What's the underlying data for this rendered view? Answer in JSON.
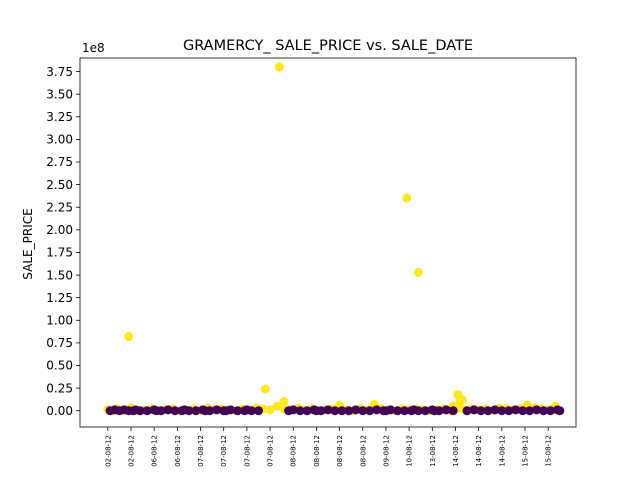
{
  "chart_data": {
    "type": "scatter",
    "title": "GRAMERCY_ SALE_PRICE vs. SALE_DATE",
    "xlabel": "",
    "ylabel": "SALE_PRICE",
    "y_offset_text": "1e8",
    "y_scale_factor": 100000000,
    "ylim": [
      -0.18,
      3.9
    ],
    "yticks": [
      0.0,
      0.25,
      0.5,
      0.75,
      1.0,
      1.25,
      1.5,
      1.75,
      2.0,
      2.25,
      2.5,
      2.75,
      3.0,
      3.25,
      3.5,
      3.75
    ],
    "ytick_labels": [
      "0.00",
      "0.25",
      "0.50",
      "0.75",
      "1.00",
      "1.25",
      "1.50",
      "1.75",
      "2.00",
      "2.25",
      "2.50",
      "2.75",
      "3.00",
      "3.25",
      "3.50",
      "3.75"
    ],
    "xtick_labels": [
      "02-08-12",
      "02-08-12",
      "06-08-12",
      "06-08-12",
      "07-08-12",
      "07-08-12",
      "07-08-12",
      "07-08-12",
      "08-08-12",
      "08-08-12",
      "08-08-12",
      "08-08-12",
      "09-08-12",
      "10-08-12",
      "13-08-12",
      "14-08-12",
      "14-08-12",
      "14-08-12",
      "15-08-12",
      "15-08-12"
    ],
    "xlim": [
      -1.2,
      20.2
    ],
    "grid": false,
    "legend": "none",
    "colors": {
      "yellow": "#fde725",
      "purple": "#440154",
      "axes": "#000000"
    },
    "series": [
      {
        "color": "#fde725",
        "x": [
          0.9,
          7.4,
          7.6,
          6.8,
          12.9,
          13.4,
          15.1,
          15.3,
          14.9,
          15.2
        ],
        "y": [
          0.82,
          3.8,
          0.1,
          0.24,
          2.35,
          1.53,
          0.18,
          0.12,
          0.05,
          0.1
        ]
      },
      {
        "color": "#fde725",
        "x": [
          0.0,
          0.2,
          0.4,
          0.6,
          0.8,
          1.0,
          1.3,
          1.6,
          1.9,
          2.2,
          2.5,
          2.8,
          3.1,
          3.4,
          3.7,
          4.0,
          4.3,
          4.6,
          4.9,
          5.2,
          5.5,
          5.8,
          6.1,
          6.4,
          6.7,
          7.0,
          7.3,
          7.6,
          7.9,
          8.2,
          8.5,
          8.8,
          9.1,
          9.4,
          9.7,
          10.0,
          10.3,
          10.6,
          10.9,
          11.2,
          11.5,
          11.8,
          12.1,
          12.4,
          12.7,
          13.0,
          13.3,
          13.6,
          13.9,
          14.2,
          14.5,
          14.8,
          15.1,
          15.4,
          15.7,
          16.0,
          16.3,
          16.6,
          16.9,
          17.2,
          17.5,
          17.8,
          18.1,
          18.4,
          18.7,
          19.0,
          19.3
        ],
        "y": [
          0.01,
          0.0,
          0.02,
          0.0,
          0.01,
          0.03,
          0.0,
          0.01,
          0.02,
          0.0,
          0.01,
          0.02,
          0.0,
          0.01,
          0.02,
          0.0,
          0.03,
          0.01,
          0.02,
          0.01,
          0.0,
          0.02,
          0.01,
          0.03,
          0.02,
          0.01,
          0.05,
          0.02,
          0.01,
          0.03,
          0.01,
          0.02,
          0.0,
          0.01,
          0.02,
          0.06,
          0.01,
          0.0,
          0.02,
          0.01,
          0.07,
          0.02,
          0.01,
          0.0,
          0.02,
          0.01,
          0.02,
          0.01,
          0.0,
          0.01,
          0.02,
          0.0,
          0.03,
          0.01,
          0.02,
          0.01,
          0.02,
          0.0,
          0.03,
          0.02,
          0.01,
          0.02,
          0.06,
          0.03,
          0.02,
          0.01,
          0.05
        ]
      },
      {
        "color": "#440154",
        "x": [
          0.1,
          0.3,
          0.5,
          0.7,
          0.9,
          1.1,
          1.2,
          1.4,
          1.7,
          2.0,
          2.1,
          2.3,
          2.6,
          2.9,
          3.2,
          3.3,
          3.5,
          3.8,
          4.1,
          4.2,
          4.4,
          4.7,
          5.0,
          5.1,
          5.3,
          5.6,
          5.9,
          6.0,
          6.2,
          6.5,
          7.8,
          8.0,
          8.3,
          8.6,
          8.9,
          9.0,
          9.2,
          9.5,
          9.8,
          10.1,
          10.4,
          10.7,
          11.0,
          11.3,
          11.6,
          11.9,
          12.0,
          12.2,
          12.5,
          12.8,
          13.1,
          13.2,
          13.4,
          13.7,
          14.0,
          14.1,
          14.3,
          14.6,
          14.9,
          15.5,
          15.8,
          16.1,
          16.4,
          16.7,
          17.0,
          17.3,
          17.6,
          17.9,
          18.2,
          18.5,
          18.8,
          19.1,
          19.4,
          19.5
        ],
        "y": [
          0.0,
          0.01,
          0.0,
          0.01,
          0.0,
          0.0,
          0.01,
          0.0,
          0.0,
          0.01,
          0.0,
          0.0,
          0.01,
          0.0,
          0.0,
          0.01,
          0.0,
          0.0,
          0.01,
          0.0,
          0.0,
          0.01,
          0.0,
          0.0,
          0.01,
          0.0,
          0.0,
          0.01,
          0.0,
          0.0,
          0.0,
          0.01,
          0.0,
          0.0,
          0.01,
          0.0,
          0.0,
          0.01,
          0.0,
          0.0,
          0.0,
          0.01,
          0.0,
          0.0,
          0.01,
          0.0,
          0.0,
          0.01,
          0.0,
          0.0,
          0.0,
          0.01,
          0.0,
          0.0,
          0.01,
          0.0,
          0.0,
          0.01,
          0.0,
          0.0,
          0.01,
          0.0,
          0.0,
          0.01,
          0.0,
          0.0,
          0.01,
          0.0,
          0.0,
          0.01,
          0.0,
          0.0,
          0.01,
          0.0
        ]
      }
    ]
  }
}
